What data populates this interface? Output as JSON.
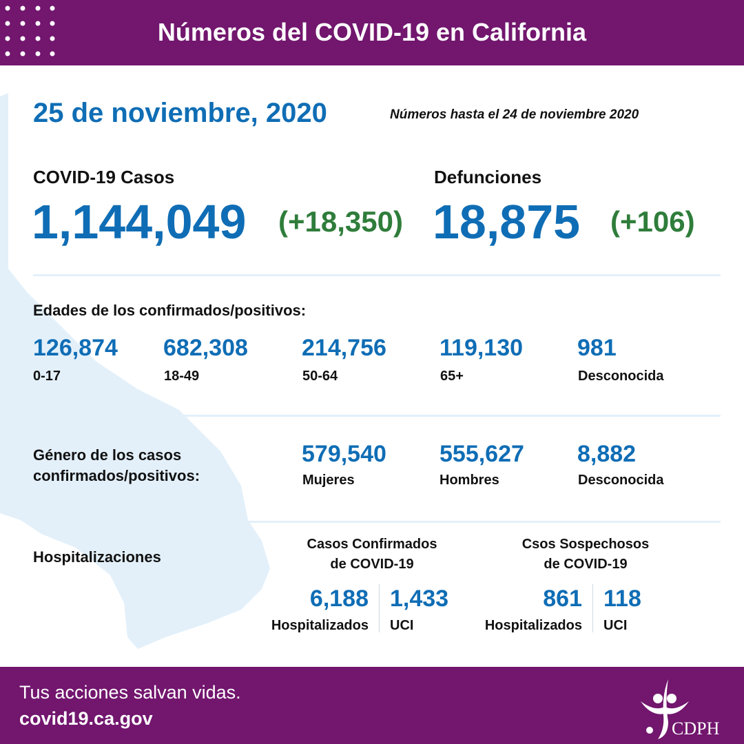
{
  "header": {
    "title": "Números del COVID-19 en California"
  },
  "date": "25 de noviembre, 2020",
  "as_of": "Números hasta el 24 de noviembre 2020",
  "cases": {
    "label": "COVID-19 Casos",
    "value": "1,144,049",
    "change": "(+18,350)"
  },
  "deaths": {
    "label": "Defunciones",
    "value": "18,875",
    "change": "(+106)"
  },
  "ages": {
    "heading": "Edades de los confirmados/positivos:",
    "items": [
      {
        "value": "126,874",
        "label": "0-17"
      },
      {
        "value": "682,308",
        "label": "18-49"
      },
      {
        "value": "214,756",
        "label": "50-64"
      },
      {
        "value": "119,130",
        "label": "65+"
      },
      {
        "value": "981",
        "label": "Desconocida"
      }
    ]
  },
  "gender": {
    "heading_line1": "Género de los casos",
    "heading_line2": "confirmados/positivos:",
    "items": [
      {
        "value": "579,540",
        "label": "Mujeres"
      },
      {
        "value": "555,627",
        "label": "Hombres"
      },
      {
        "value": "8,882",
        "label": "Desconocida"
      }
    ]
  },
  "hosp": {
    "heading": "Hospitalizaciones",
    "confirmed": {
      "title1": "Casos Confirmados",
      "title2": "de COVID-19",
      "hosp_value": "6,188",
      "hosp_label": "Hospitalizados",
      "icu_value": "1,433",
      "icu_label": "UCI"
    },
    "suspected": {
      "title1": "Csos Sospechosos",
      "title2": "de COVID-19",
      "hosp_value": "861",
      "hosp_label": "Hospitalizados",
      "icu_value": "118",
      "icu_label": "UCI"
    }
  },
  "footer": {
    "tagline": "Tus acciones salvan vidas.",
    "url": "covid19.ca.gov",
    "logo_text": "CDPH"
  },
  "colors": {
    "purple": "#72166e",
    "blue": "#0f6db5",
    "green": "#2f7d3b",
    "map": "#e3f0fa"
  }
}
